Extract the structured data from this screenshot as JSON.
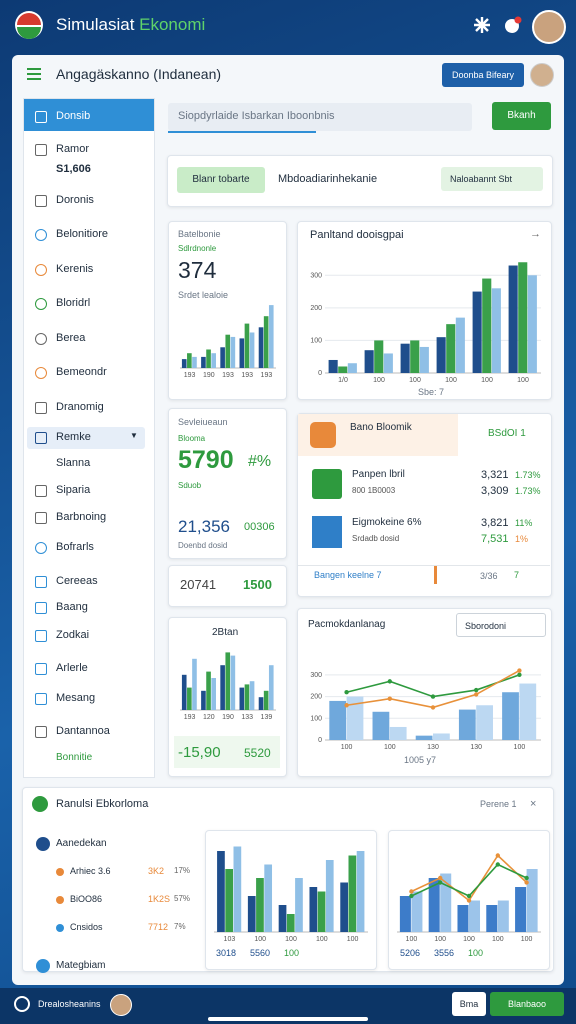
{
  "topbar": {
    "title": "Simulasiat ",
    "title_accent": "Ekonomi"
  },
  "header": {
    "title": "Angagäskanno (Indanean)",
    "button": "Doonba Bifeary"
  },
  "sidebar": {
    "items": [
      "Donsib",
      "Ramor",
      "S1,606",
      "Doronis",
      "Belonitiore",
      "Kerenis",
      "Bloridrl",
      "Berea",
      "Bemeondr",
      "Dranomig",
      "Remke",
      "Slanna",
      "Siparia",
      "Barbnoing",
      "Bofrarls",
      "Cereeas",
      "Baang",
      "Zodkai",
      "Arlerle",
      "Mesang",
      "Dantannoa",
      "Bonnitie"
    ]
  },
  "search": {
    "placeholder": "Siopdyrlaide Isbarkan Iboonbnis",
    "button": "Bkanh"
  },
  "filters": {
    "tab": "Blanr tobarte",
    "label": "Mbdoadiarinhekanie",
    "dropdown": "Naloabannt Sbt"
  },
  "card_a": {
    "title": "Batelbonie",
    "subtitle": "Sdlrdnonle",
    "value": "374",
    "caption": "Srdet lealoie",
    "chart": {
      "type": "bar",
      "categories": [
        "193",
        "190",
        "193",
        "193",
        "193"
      ],
      "ylim": [
        0,
        100
      ],
      "series": [
        {
          "color": "#1f4e8c",
          "values": [
            12,
            15,
            28,
            40,
            55
          ]
        },
        {
          "color": "#3aa04a",
          "values": [
            20,
            25,
            45,
            60,
            70
          ]
        },
        {
          "color": "#8fbfe6",
          "values": [
            15,
            20,
            42,
            48,
            85
          ]
        }
      ]
    }
  },
  "card_b": {
    "title": "Panltand dooisgpai",
    "footer": "Sbe: 7",
    "chart": {
      "type": "bar",
      "categories": [
        "1/0",
        "100",
        "100",
        "100",
        "100",
        "100"
      ],
      "ylim": [
        0,
        350
      ],
      "yticks": [
        0,
        100,
        200,
        300
      ],
      "series": [
        {
          "color": "#1f4e8c",
          "values": [
            40,
            70,
            90,
            110,
            250,
            330
          ]
        },
        {
          "color": "#3aa04a",
          "values": [
            20,
            100,
            100,
            150,
            290,
            340
          ]
        },
        {
          "color": "#8fbfe6",
          "values": [
            30,
            60,
            80,
            170,
            260,
            300
          ]
        }
      ]
    }
  },
  "card_c": {
    "title": "Sevleiueaun",
    "subtitle": "Blooma",
    "value": "5790",
    "unit": "#%",
    "note": "Sduob",
    "value2": "21,356",
    "value3": "00306",
    "caption": "Doenbd dosid"
  },
  "card_d": {
    "value": "20741",
    "value2": "1500"
  },
  "card_e": {
    "title": "Bano Bloomik",
    "badge": "BSdOI 1",
    "rows": [
      {
        "name": "Panpen lbril",
        "sub": "800 1B0003",
        "v1": "3,321",
        "p1": "1.73%",
        "v2": "3,309",
        "p2": "1.73%"
      },
      {
        "name": "Eigmokeine 6%",
        "sub": "Srdadb dosid",
        "v1": "3,821",
        "p1": "11%",
        "v2": "7,531",
        "p2": "1%"
      }
    ],
    "footer": "Bangen keelne 7",
    "footer_value": "3/36",
    "footer_num": "7"
  },
  "card_f": {
    "title": "2Btan",
    "value": "-15,90",
    "value2": "5520",
    "chart": {
      "type": "bar",
      "categories": [
        "193",
        "120",
        "190",
        "133",
        "139"
      ],
      "ylim": [
        0,
        100
      ],
      "series": [
        {
          "color": "#1f4e8c",
          "values": [
            55,
            30,
            70,
            35,
            20
          ]
        },
        {
          "color": "#3aa04a",
          "values": [
            35,
            60,
            90,
            40,
            30
          ]
        },
        {
          "color": "#8fbfe6",
          "values": [
            80,
            50,
            85,
            45,
            70
          ]
        }
      ]
    }
  },
  "card_g": {
    "title": "Pacmokdanlanag",
    "dropdown": "Sborodoni",
    "footer": "1005 y7",
    "chart": {
      "type": "bar",
      "categories": [
        "100",
        "100",
        "130",
        "130",
        "100"
      ],
      "ylim": [
        0,
        350
      ],
      "yticks": [
        0,
        100,
        200,
        300
      ],
      "series": [
        {
          "color": "#6fa8dc",
          "values": [
            180,
            130,
            20,
            140,
            220
          ]
        },
        {
          "color": "#bcd8f2",
          "values": [
            200,
            60,
            30,
            160,
            260
          ]
        },
        {
          "type": "line",
          "color": "#2e9a3e",
          "values": [
            220,
            270,
            200,
            230,
            300
          ]
        },
        {
          "type": "line",
          "color": "#e8913a",
          "values": [
            160,
            190,
            150,
            210,
            320
          ]
        }
      ]
    }
  },
  "panel": {
    "title": "Ranulsi Ebkorloma",
    "badge": "Perene 1",
    "list": [
      {
        "name": "Aanedekan"
      },
      {
        "name": "Arhiec 3.6",
        "v": "3K2",
        "p": "17%"
      },
      {
        "name": "BiOO86",
        "v": "1K2S",
        "p": "57%"
      },
      {
        "name": "Cnsidos",
        "v": "7712",
        "p": "7%"
      },
      {
        "name": "Mategbiam"
      }
    ],
    "chart_a": {
      "type": "bar",
      "categories": [
        "103",
        "100",
        "100",
        "100",
        "100"
      ],
      "ylim": [
        0,
        100
      ],
      "series": [
        {
          "color": "#1f4e8c",
          "values": [
            90,
            40,
            30,
            50,
            55
          ]
        },
        {
          "color": "#3aa04a",
          "values": [
            70,
            60,
            20,
            45,
            85
          ]
        },
        {
          "color": "#8fbfe6",
          "values": [
            95,
            75,
            60,
            80,
            90
          ]
        }
      ],
      "stats": [
        "3018",
        "5560",
        "100"
      ]
    },
    "chart_b": {
      "type": "bar",
      "categories": [
        "100",
        "100",
        "100",
        "100",
        "100"
      ],
      "ylim": [
        0,
        100
      ],
      "series": [
        {
          "color": "#3d7cc9",
          "values": [
            40,
            60,
            30,
            30,
            50
          ]
        },
        {
          "color": "#9cc4ea",
          "values": [
            45,
            65,
            35,
            35,
            70
          ]
        },
        {
          "type": "line",
          "color": "#e8913a",
          "values": [
            45,
            60,
            35,
            85,
            55
          ]
        },
        {
          "type": "line",
          "color": "#2e9a3e",
          "values": [
            40,
            55,
            40,
            75,
            60
          ]
        }
      ],
      "stats": [
        "5206",
        "3556",
        "100"
      ]
    }
  },
  "bottombar": {
    "label": "Drealosheanins",
    "button": "Bma",
    "button2": "Blanbaoo"
  }
}
